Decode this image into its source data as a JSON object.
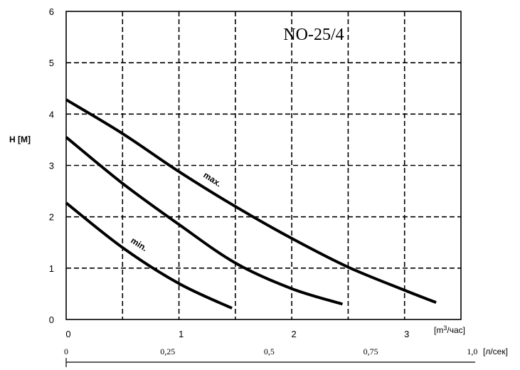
{
  "chart_data": {
    "type": "line",
    "title": "NO-25/4",
    "ylabel": "H [M]",
    "xlabel": "[m3/час]",
    "xlabel_units": {
      "base": "[m",
      "sup": "3",
      "rest": "/час]"
    },
    "x2label": "[л/сек]",
    "xlim": [
      0,
      3.5
    ],
    "ylim": [
      0,
      6
    ],
    "x_ticks": [
      "0",
      "1",
      "2",
      "3"
    ],
    "y_ticks": [
      "0",
      "1",
      "2",
      "3",
      "4",
      "5",
      "6"
    ],
    "x2_ticks": [
      "0",
      "0,25",
      "0,5",
      "0,75",
      "1,0"
    ],
    "x2_tick_values": [
      0,
      0.25,
      0.5,
      0.75,
      1.0
    ],
    "grid": true,
    "series": [
      {
        "name": "max.",
        "x": [
          0,
          0.5,
          1.0,
          1.5,
          2.0,
          2.5,
          3.0,
          3.28
        ],
        "y": [
          4.28,
          3.62,
          2.88,
          2.2,
          1.58,
          1.02,
          0.57,
          0.33
        ]
      },
      {
        "name": "",
        "x": [
          0,
          0.5,
          1.0,
          1.5,
          2.0,
          2.45
        ],
        "y": [
          3.55,
          2.65,
          1.85,
          1.1,
          0.6,
          0.3
        ]
      },
      {
        "name": "min.",
        "x": [
          0,
          0.5,
          1.0,
          1.47
        ],
        "y": [
          2.27,
          1.4,
          0.7,
          0.22
        ]
      }
    ],
    "annotations": [
      {
        "text": "max.",
        "series": 0
      },
      {
        "text": "min.",
        "series": 2
      }
    ]
  }
}
